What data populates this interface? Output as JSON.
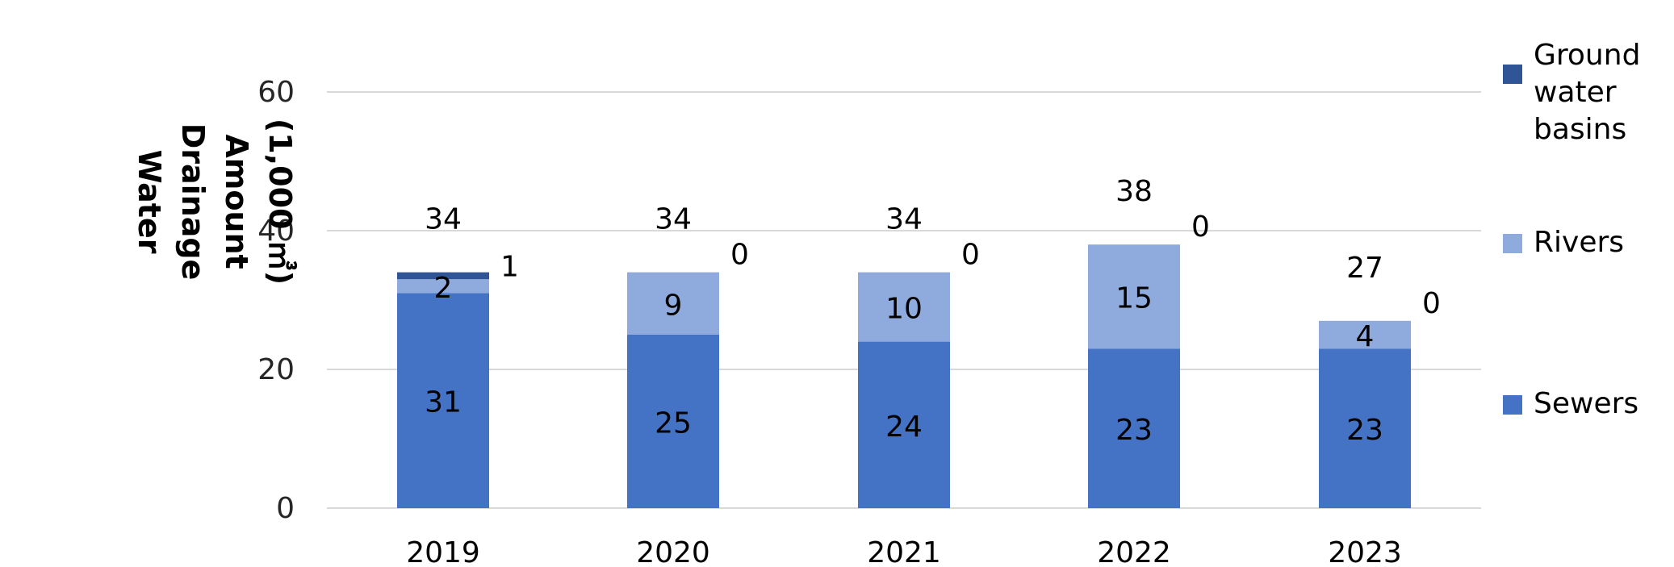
{
  "chart_data": {
    "type": "bar",
    "stacked": true,
    "ylabel": "Water Drainage Amount (1,000 ㎥)",
    "ylabel_lines": [
      "Water",
      "Drainage",
      "Amount",
      "(1,000 ㎥)"
    ],
    "categories": [
      "2019",
      "2020",
      "2021",
      "2022",
      "2023"
    ],
    "ylim": [
      0,
      60
    ],
    "yticks": [
      0,
      20,
      40,
      60
    ],
    "grid": true,
    "legend_position": "right",
    "series": [
      {
        "name": "Sewers",
        "values": [
          31,
          25,
          24,
          23,
          23
        ],
        "color": "#4472C4"
      },
      {
        "name": "Rivers",
        "values": [
          2,
          9,
          10,
          15,
          4
        ],
        "color": "#8FAADC"
      },
      {
        "name": "Ground water basins",
        "values": [
          1,
          0,
          0,
          0,
          0
        ],
        "color": "#2F5597"
      }
    ],
    "totals": [
      34,
      34,
      34,
      38,
      27
    ],
    "legend": [
      {
        "label": "Ground water basins",
        "lines": [
          "Ground",
          "water",
          "basins"
        ],
        "color": "#2F5597"
      },
      {
        "label": "Rivers",
        "lines": [
          "Rivers"
        ],
        "color": "#8FAADC"
      },
      {
        "label": "Sewers",
        "lines": [
          "Sewers"
        ],
        "color": "#4472C4"
      }
    ]
  }
}
